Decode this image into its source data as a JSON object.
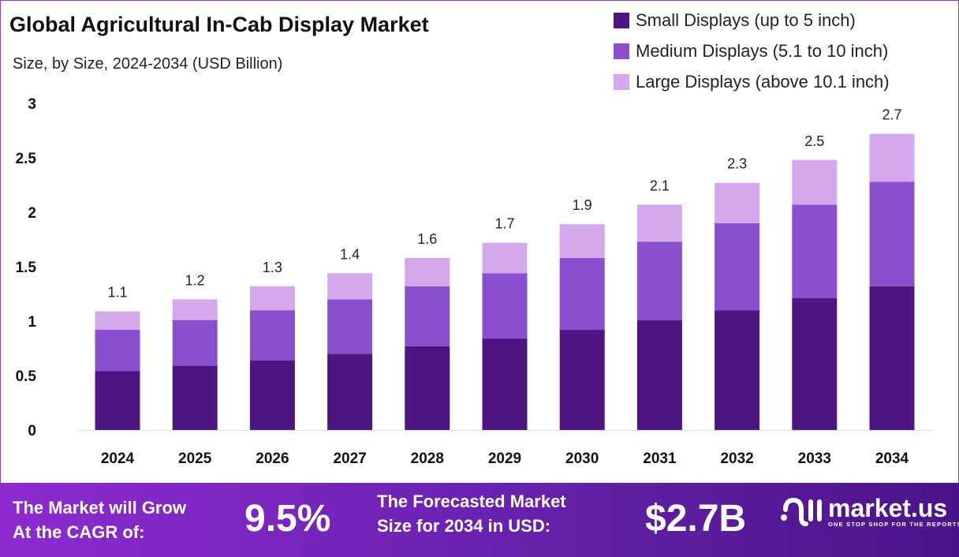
{
  "chart_data": {
    "type": "stacked-bar",
    "title": "Global Agricultural In-Cab Display Market",
    "subtitle": "Size, by Size, 2024-2034 (USD Billion)",
    "categories": [
      "2024",
      "2025",
      "2026",
      "2027",
      "2028",
      "2029",
      "2030",
      "2031",
      "2032",
      "2033",
      "2034"
    ],
    "series": [
      {
        "name": "Small Displays (up to 5 inch)",
        "color": "#4d1682",
        "values": [
          0.54,
          0.59,
          0.64,
          0.7,
          0.77,
          0.84,
          0.92,
          1.01,
          1.1,
          1.21,
          1.32
        ]
      },
      {
        "name": "Medium Displays (5.1 to 10 inch)",
        "color": "#8a4fcf",
        "values": [
          0.38,
          0.42,
          0.46,
          0.5,
          0.55,
          0.6,
          0.66,
          0.72,
          0.8,
          0.86,
          0.96
        ]
      },
      {
        "name": "Large Displays (above 10.1 inch)",
        "color": "#d4a9ec",
        "values": [
          0.17,
          0.19,
          0.22,
          0.24,
          0.26,
          0.28,
          0.31,
          0.34,
          0.37,
          0.41,
          0.44
        ]
      }
    ],
    "totals_labels": [
      "1.1",
      "1.2",
      "1.3",
      "1.4",
      "1.6",
      "1.7",
      "1.9",
      "2.1",
      "2.3",
      "2.5",
      "2.7"
    ],
    "ylim": [
      0,
      3
    ],
    "yticks": [
      "0",
      "0.5",
      "1",
      "1.5",
      "2",
      "2.5",
      "3"
    ],
    "grid": false,
    "legend_position": "top-right"
  },
  "footer": {
    "cagr_label": [
      "The Market will Grow",
      "At the CAGR of:"
    ],
    "cagr_value": "9.5%",
    "forecast_label": [
      "The Forecasted Market",
      "Size for 2034 in USD:"
    ],
    "forecast_value": "$2.7B",
    "logo_name": "market.us",
    "logo_tagline": "ONE STOP SHOP FOR THE REPORTS"
  }
}
